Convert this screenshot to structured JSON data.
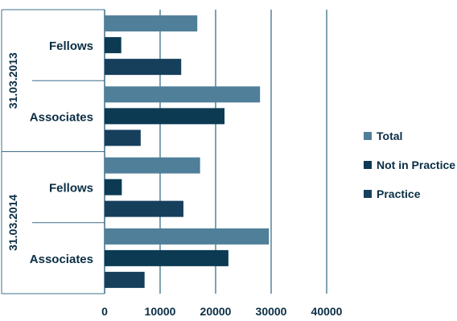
{
  "chart_data": {
    "type": "bar",
    "orientation": "horizontal",
    "groups": [
      {
        "label": "31.03.2013",
        "categories": [
          "Fellows",
          "Associates"
        ]
      },
      {
        "label": "31.03.2014",
        "categories": [
          "Fellows",
          "Associates"
        ]
      }
    ],
    "series": [
      {
        "name": "Total",
        "color": "#4f7f99",
        "values": [
          16700,
          28000,
          17200,
          29600
        ]
      },
      {
        "name": "Not in Practice",
        "color": "#0b3a52",
        "values": [
          3000,
          21600,
          3100,
          22300
        ]
      },
      {
        "name": "Practice",
        "color": "#163f5c",
        "values": [
          13800,
          6500,
          14200,
          7200
        ]
      }
    ],
    "xlim": [
      0,
      40000
    ],
    "xticks": [
      "0",
      "10000",
      "20000",
      "30000",
      "40000"
    ],
    "grid": true,
    "legend_position": "right"
  }
}
